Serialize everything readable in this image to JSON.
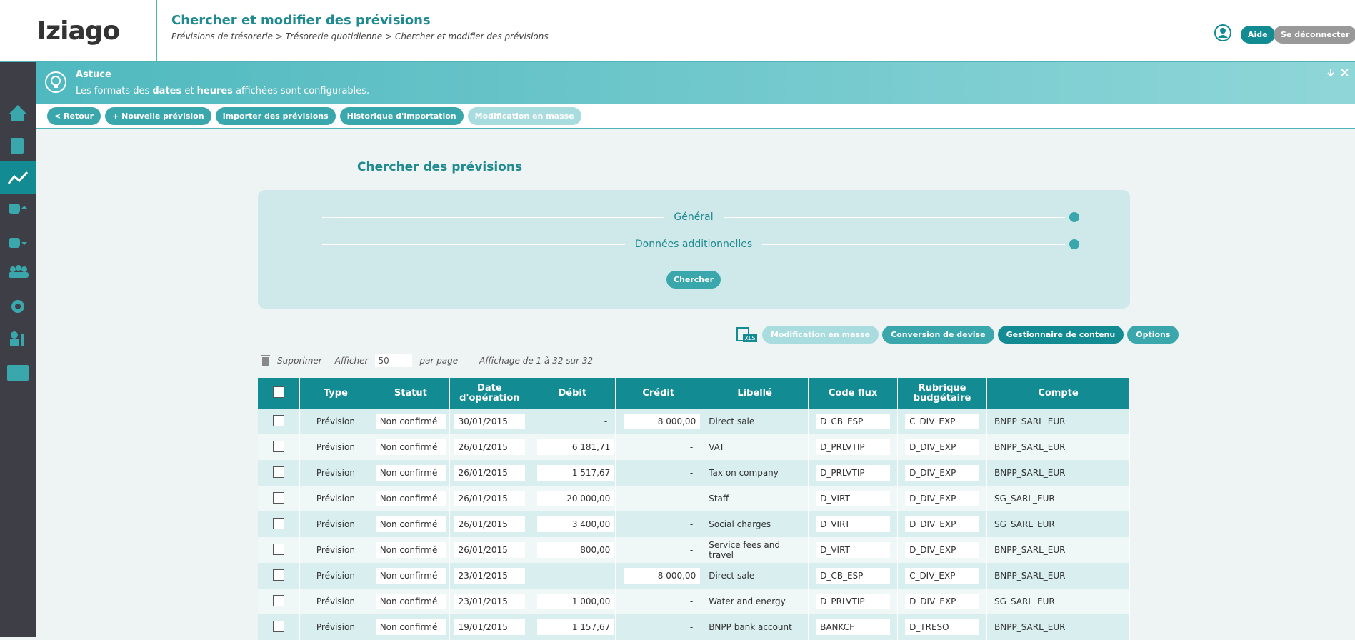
{
  "header": {
    "logo": "Iziago",
    "title": "Chercher et modifier des prévisions",
    "breadcrumb": "Prévisions de trésorerie > Trésorerie quotidienne > Chercher et modifier des prévisions",
    "help": "Aide",
    "logout": "Se déconnecter"
  },
  "tip": {
    "title": "Astuce",
    "text_before": "Les formats des",
    "bold1": "dates",
    "mid": "et",
    "bold2": "heures",
    "text_after": "affichées sont configurables."
  },
  "toolbar": [
    "< Retour",
    "+ Nouvelle prévision",
    "Importer des prévisions",
    "Historique d'importation",
    "Modification en masse"
  ],
  "search": {
    "title": "Chercher des prévisions",
    "sections": [
      "Général",
      "Données additionnelles"
    ],
    "button": "Chercher"
  },
  "actions": {
    "xls": "XLS",
    "buttons": [
      "Modification en masse",
      "Conversion de devise",
      "Gestionnaire de contenu",
      "Options"
    ],
    "delete": "Supprimer",
    "show": "Afficher",
    "per_page_value": "50",
    "per_page": "par page",
    "summary": "Affichage de 1 à 32 sur 32"
  },
  "table": {
    "headers": [
      "Type",
      "Statut",
      "Date d'opération",
      "Débit",
      "Crédit",
      "Libellé",
      "Code flux",
      "Rubrique budgétaire",
      "Compte"
    ],
    "rows": [
      [
        "Prévision",
        "Non confirmé",
        "30/01/2015",
        "-",
        "8 000,00",
        "Direct sale",
        "D_CB_ESP",
        "C_DIV_EXP",
        "BNPP_SARL_EUR"
      ],
      [
        "Prévision",
        "Non confirmé",
        "26/01/2015",
        "6 181,71",
        "-",
        "VAT",
        "D_PRLVTIP",
        "D_DIV_EXP",
        "BNPP_SARL_EUR"
      ],
      [
        "Prévision",
        "Non confirmé",
        "26/01/2015",
        "1 517,67",
        "-",
        "Tax on company",
        "D_PRLVTIP",
        "D_DIV_EXP",
        "BNPP_SARL_EUR"
      ],
      [
        "Prévision",
        "Non confirmé",
        "26/01/2015",
        "20 000,00",
        "-",
        "Staff",
        "D_VIRT",
        "D_DIV_EXP",
        "SG_SARL_EUR"
      ],
      [
        "Prévision",
        "Non confirmé",
        "26/01/2015",
        "3 400,00",
        "-",
        "Social charges",
        "D_VIRT",
        "D_DIV_EXP",
        "SG_SARL_EUR"
      ],
      [
        "Prévision",
        "Non confirmé",
        "26/01/2015",
        "800,00",
        "-",
        "Service fees and travel",
        "D_VIRT",
        "D_DIV_EXP",
        "BNPP_SARL_EUR"
      ],
      [
        "Prévision",
        "Non confirmé",
        "23/01/2015",
        "-",
        "8 000,00",
        "Direct sale",
        "D_CB_ESP",
        "C_DIV_EXP",
        "BNPP_SARL_EUR"
      ],
      [
        "Prévision",
        "Non confirmé",
        "23/01/2015",
        "1 000,00",
        "-",
        "Water and energy",
        "D_PRLVTIP",
        "D_DIV_EXP",
        "SG_SARL_EUR"
      ],
      [
        "Prévision",
        "Non confirmé",
        "19/01/2015",
        "1 157,67",
        "-",
        "BNPP bank account",
        "BANKCF",
        "D_TRESO",
        "BNPP_SARL_EUR"
      ]
    ]
  }
}
